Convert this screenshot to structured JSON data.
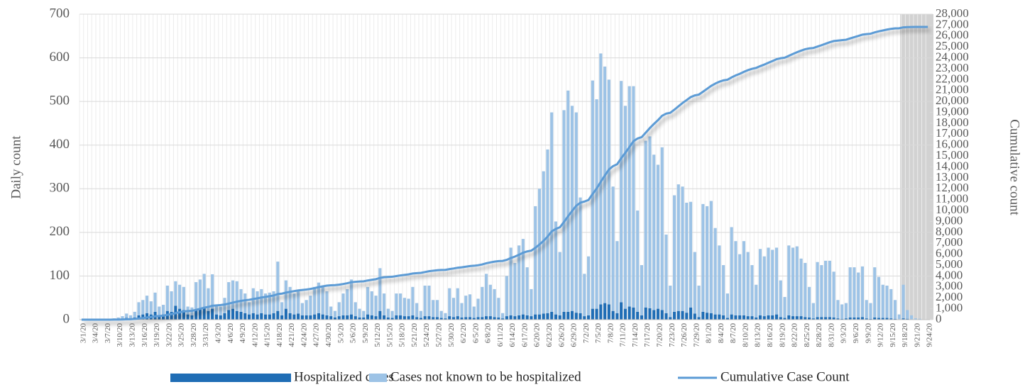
{
  "chart_data": {
    "type": "bar",
    "y_label": "Daily count",
    "y2_label": "Cumulative count",
    "ylim": [
      0,
      700
    ],
    "yticks": [
      0,
      100,
      200,
      300,
      400,
      500,
      600,
      700
    ],
    "y2lim": [
      0,
      28000
    ],
    "y2ticks": [
      0,
      {
        "value": 1000,
        "label": "1,000"
      },
      {
        "value": 2000,
        "label": "2,000"
      },
      {
        "value": 3000,
        "label": "3,000"
      },
      {
        "value": 4000,
        "label": "4,000"
      },
      {
        "value": 5000,
        "label": "5,000"
      },
      {
        "value": 6000,
        "label": "6,000"
      },
      {
        "value": 7000,
        "label": "7,000"
      },
      {
        "value": 8000,
        "label": "8,000"
      },
      {
        "value": 9000,
        "label": "9,000"
      },
      {
        "value": 10000,
        "label": "10,000"
      },
      {
        "value": 11000,
        "label": "11,000"
      },
      {
        "value": 12000,
        "label": "12,000"
      },
      {
        "value": 13000,
        "label": "13,000"
      },
      {
        "value": 14000,
        "label": "14,000"
      },
      {
        "value": 15000,
        "label": "15,000"
      },
      {
        "value": 16000,
        "label": "16,000"
      },
      {
        "value": 17000,
        "label": "17,000"
      },
      {
        "value": 18000,
        "label": "18,000"
      },
      {
        "value": 19000,
        "label": "19,000"
      },
      {
        "value": 20000,
        "label": "20,000"
      },
      {
        "value": 21000,
        "label": "21,000"
      },
      {
        "value": 22000,
        "label": "22,000"
      },
      {
        "value": 23000,
        "label": "23,000"
      },
      {
        "value": 24000,
        "label": "24,000"
      },
      {
        "value": 25000,
        "label": "25,000"
      },
      {
        "value": 26000,
        "label": "26,000"
      },
      {
        "value": 27000,
        "label": "27,000"
      },
      {
        "value": 28000,
        "label": "28,000"
      }
    ],
    "grid": true,
    "stacked": true,
    "legend": "bottom",
    "categories": [
      "3/1/20",
      null,
      null,
      "3/4/20",
      null,
      null,
      "3/7/20",
      null,
      null,
      "3/10/20",
      null,
      null,
      "3/13/20",
      null,
      null,
      "3/16/20",
      null,
      null,
      "3/19/20",
      null,
      null,
      "3/22/20",
      null,
      null,
      "3/25/20",
      null,
      null,
      "3/28/20",
      null,
      null,
      "3/31/20",
      null,
      null,
      "4/3/20",
      null,
      null,
      "4/6/20",
      null,
      null,
      "4/9/20",
      null,
      null,
      "4/12/20",
      null,
      null,
      "4/15/20",
      null,
      null,
      "4/18/20",
      null,
      null,
      "4/21/20",
      null,
      null,
      "4/24/20",
      null,
      null,
      "4/27/20",
      null,
      null,
      "4/30/20",
      null,
      null,
      "5/3/20",
      null,
      null,
      "5/6/20",
      null,
      null,
      "5/9/20",
      null,
      null,
      "5/12/20",
      null,
      null,
      "5/15/20",
      null,
      null,
      "5/18/20",
      null,
      null,
      "5/21/20",
      null,
      null,
      "5/24/20",
      null,
      null,
      "5/27/20",
      null,
      null,
      "5/30/20",
      null,
      null,
      "6/2/20",
      null,
      null,
      "6/5/20",
      null,
      null,
      "6/8/20",
      null,
      null,
      "6/11/20",
      null,
      null,
      "6/14/20",
      null,
      null,
      "6/17/20",
      null,
      null,
      "6/20/20",
      null,
      null,
      "6/23/20",
      null,
      null,
      "6/26/20",
      null,
      null,
      "6/29/20",
      null,
      null,
      "7/2/20",
      null,
      null,
      "7/5/20",
      null,
      null,
      "7/8/20",
      null,
      null,
      "7/11/20",
      null,
      null,
      "7/14/20",
      null,
      null,
      "7/17/20",
      null,
      null,
      "7/20/20",
      null,
      null,
      "7/23/20",
      null,
      null,
      "7/26/20",
      null,
      null,
      "7/29/20",
      null,
      null,
      "8/1/20",
      null,
      null,
      "8/4/20",
      null,
      null,
      "8/7/20",
      null,
      null,
      "8/10/20",
      null,
      null,
      "8/13/20",
      null,
      null,
      "8/16/20",
      null,
      null,
      "8/19/20",
      null,
      null,
      "8/22/20",
      null,
      null,
      "8/25/20",
      null,
      null,
      "8/28/20",
      null,
      null,
      "8/31/20",
      null,
      null,
      "9/3/20",
      null,
      null,
      "9/6/20",
      null,
      null,
      "9/9/20",
      null,
      null,
      "9/12/20",
      null,
      null,
      "9/15/20",
      null,
      null,
      "9/18/20",
      null,
      null,
      "9/21/20",
      null,
      null,
      "9/24/20"
    ],
    "series": [
      {
        "name": "Hospitalized cases",
        "color": "#1f6db5",
        "values": [
          0,
          0,
          0,
          0,
          0,
          0,
          0,
          0,
          1,
          2,
          2,
          4,
          3,
          5,
          10,
          12,
          15,
          12,
          18,
          10,
          12,
          20,
          18,
          32,
          25,
          22,
          12,
          10,
          22,
          25,
          28,
          20,
          25,
          12,
          10,
          15,
          22,
          25,
          20,
          18,
          15,
          12,
          15,
          12,
          15,
          12,
          12,
          15,
          20,
          10,
          25,
          15,
          12,
          14,
          10,
          10,
          10,
          12,
          15,
          12,
          10,
          8,
          5,
          8,
          10,
          10,
          12,
          8,
          5,
          5,
          12,
          10,
          8,
          20,
          10,
          5,
          4,
          10,
          10,
          8,
          8,
          10,
          6,
          4,
          8,
          8,
          6,
          6,
          4,
          3,
          8,
          6,
          8,
          5,
          6,
          6,
          4,
          6,
          6,
          8,
          8,
          6,
          5,
          3,
          8,
          10,
          8,
          10,
          12,
          10,
          8,
          12,
          12,
          14,
          15,
          18,
          12,
          10,
          18,
          18,
          20,
          16,
          15,
          8,
          10,
          25,
          25,
          35,
          38,
          35,
          20,
          15,
          40,
          25,
          30,
          28,
          18,
          10,
          28,
          26,
          22,
          25,
          22,
          15,
          6,
          18,
          20,
          20,
          16,
          28,
          14,
          6,
          18,
          16,
          15,
          12,
          12,
          10,
          4,
          12,
          10,
          10,
          10,
          8,
          8,
          5,
          10,
          8,
          10,
          10,
          12,
          6,
          4,
          10,
          8,
          8,
          8,
          6,
          5,
          3,
          6,
          6,
          6,
          6,
          5,
          3,
          2,
          3,
          5,
          5,
          5,
          6,
          3,
          2,
          5,
          4,
          4,
          4,
          3,
          2,
          1,
          3,
          2,
          1,
          0,
          0,
          0,
          0
        ]
      },
      {
        "name": "Cases not known to be hospitalized",
        "color": "#9dc3e6",
        "values": [
          0,
          0,
          0,
          0,
          1,
          0,
          2,
          1,
          2,
          3,
          6,
          10,
          7,
          13,
          30,
          33,
          40,
          30,
          44,
          20,
          22,
          58,
          47,
          56,
          55,
          53,
          18,
          18,
          64,
          67,
          77,
          52,
          79,
          23,
          20,
          35,
          64,
          65,
          68,
          52,
          45,
          28,
          57,
          53,
          55,
          48,
          50,
          50,
          113,
          30,
          65,
          60,
          48,
          54,
          28,
          35,
          45,
          63,
          70,
          63,
          55,
          22,
          15,
          32,
          50,
          60,
          80,
          32,
          20,
          15,
          63,
          55,
          47,
          98,
          50,
          20,
          16,
          50,
          50,
          42,
          40,
          65,
          32,
          16,
          70,
          70,
          39,
          39,
          16,
          12,
          64,
          44,
          64,
          33,
          49,
          52,
          26,
          42,
          69,
          97,
          72,
          64,
          45,
          12,
          92,
          155,
          122,
          160,
          173,
          110,
          62,
          248,
          288,
          326,
          375,
          457,
          213,
          145,
          462,
          507,
          470,
          459,
          265,
          97,
          135,
          523,
          480,
          575,
          542,
          515,
          285,
          165,
          507,
          465,
          505,
          507,
          232,
          115,
          382,
          394,
          356,
          330,
          373,
          180,
          72,
          267,
          290,
          285,
          252,
          242,
          141,
          72,
          247,
          244,
          257,
          198,
          158,
          115,
          56,
          200,
          170,
          140,
          170,
          147,
          117,
          75,
          152,
          137,
          155,
          150,
          153,
          84,
          48,
          160,
          157,
          160,
          132,
          124,
          70,
          35,
          126,
          119,
          129,
          129,
          105,
          42,
          33,
          35,
          115,
          115,
          103,
          116,
          42,
          36,
          115,
          94,
          76,
          74,
          67,
          43,
          11,
          77,
          20,
          9,
          3,
          2,
          0,
          0
        ]
      },
      {
        "name": "Cumulative Case Count",
        "color": "#5b9bd5",
        "type": "line",
        "axis": "y2",
        "values": [
          0,
          0,
          0,
          0,
          1,
          1,
          3,
          4,
          7,
          12,
          20,
          34,
          44,
          62,
          102,
          147,
          202,
          244,
          306,
          336,
          370,
          448,
          513,
          601,
          681,
          756,
          786,
          814,
          900,
          992,
          1097,
          1169,
          1273,
          1308,
          1338,
          1388,
          1474,
          1564,
          1652,
          1722,
          1782,
          1822,
          1894,
          1959,
          2029,
          2089,
          2151,
          2216,
          2349,
          2389,
          2479,
          2554,
          2614,
          2682,
          2720,
          2765,
          2820,
          2895,
          2980,
          3055,
          3120,
          3150,
          3170,
          3210,
          3270,
          3340,
          3432,
          3472,
          3497,
          3517,
          3592,
          3657,
          3712,
          3830,
          3890,
          3915,
          3935,
          3995,
          4055,
          4105,
          4153,
          4228,
          4266,
          4286,
          4364,
          4442,
          4487,
          4532,
          4552,
          4567,
          4639,
          4689,
          4761,
          4799,
          4854,
          4912,
          4942,
          4990,
          5065,
          5170,
          5250,
          5320,
          5370,
          5385,
          5485,
          5650,
          5780,
          5950,
          6135,
          6255,
          6325,
          6585,
          6885,
          7225,
          7615,
          8090,
          8315,
          8470,
          8950,
          9475,
          9965,
          10440,
          10720,
          10825,
          10970,
          11518,
          12023,
          12633,
          13213,
          13763,
          14068,
          14248,
          14795,
          15285,
          15820,
          16355,
          16605,
          16730,
          17140,
          17560,
          17938,
          18293,
          18688,
          18883,
          18961,
          19246,
          19556,
          19861,
          20129,
          20399,
          20554,
          20632,
          20897,
          21157,
          21429,
          21639,
          21809,
          21934,
          21994,
          22206,
          22386,
          22536,
          22716,
          22871,
          22996,
          23076,
          23238,
          23383,
          23548,
          23708,
          23873,
          23963,
          24015,
          24185,
          24350,
          24518,
          24658,
          24788,
          24863,
          24901,
          25033,
          25158,
          25293,
          25428,
          25538,
          25583,
          25618,
          25656,
          25776,
          25896,
          26004,
          26126,
          26171,
          26209,
          26329,
          26427,
          26507,
          26585,
          26655,
          26700,
          26712,
          26792,
          26814,
          26824,
          26827,
          26829,
          26829,
          26829
        ]
      }
    ]
  }
}
